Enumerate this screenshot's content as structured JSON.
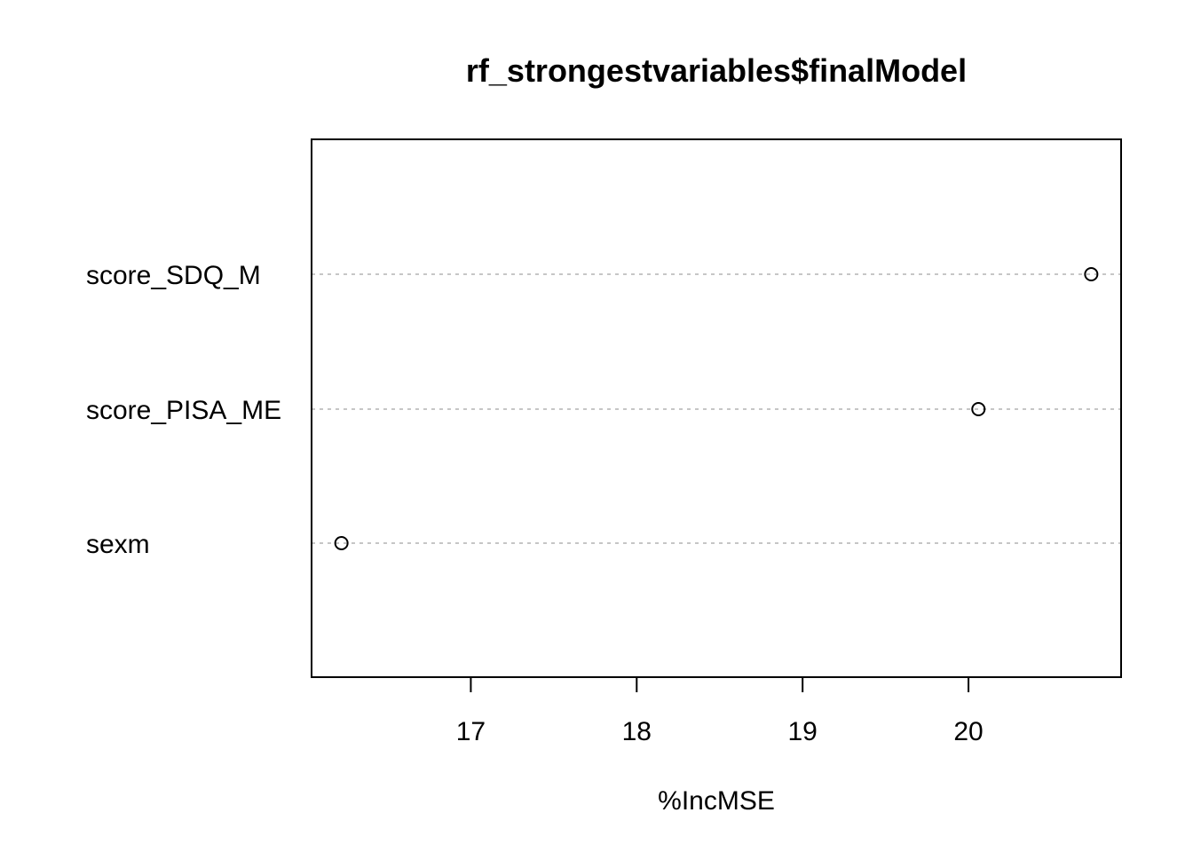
{
  "chart_data": {
    "type": "scatter",
    "title": "rf_strongestvariables$finalModel",
    "xlabel": "%IncMSE",
    "ylabel": "",
    "categories": [
      "score_SDQ_M",
      "score_PISA_ME",
      "sexm"
    ],
    "values": [
      20.74,
      20.06,
      16.22
    ],
    "xlim": [
      16.04,
      20.92
    ],
    "xticks": [
      17,
      18,
      19,
      20
    ],
    "grid": "dotted-horizontal",
    "legend": "none",
    "colors": {
      "point_stroke": "#000000",
      "grid": "#b3b3b3",
      "axis": "#000000"
    }
  }
}
